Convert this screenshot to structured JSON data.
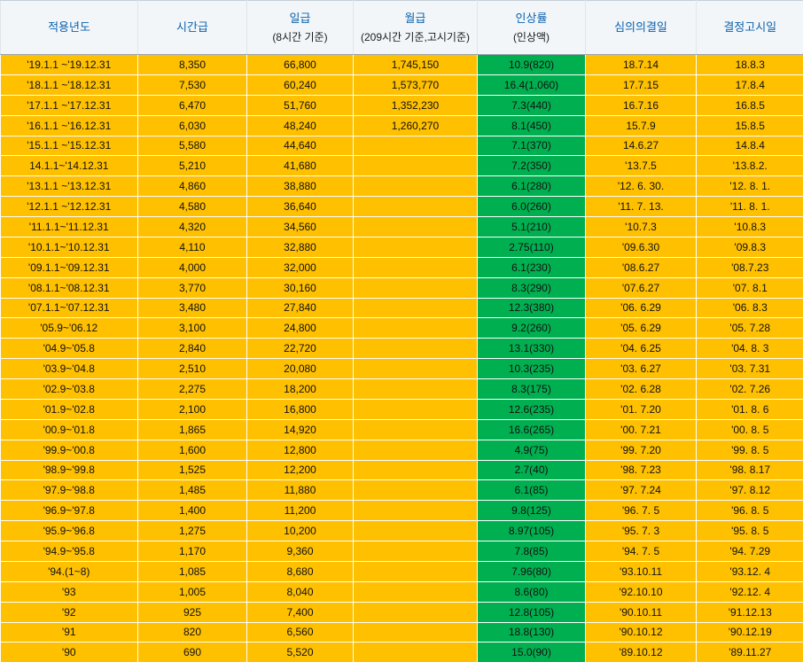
{
  "colors": {
    "header_bg": "#f2f6f9",
    "header_text": "#0b62ae",
    "header_subtext": "#1a1a1a",
    "row_bg": "#ffc000",
    "rate_bg": "#00b050",
    "cell_text": "#111111",
    "grid": "#ffffff"
  },
  "chart_data": {
    "type": "table",
    "columns": [
      {
        "label": "적용년도",
        "sublabel": ""
      },
      {
        "label": "시간급",
        "sublabel": ""
      },
      {
        "label": "일급",
        "sublabel": "(8시간 기준)"
      },
      {
        "label": "월급",
        "sublabel": "(209시간 기준,고시기준)"
      },
      {
        "label": "인상률",
        "sublabel": "(인상액)"
      },
      {
        "label": "심의의결일",
        "sublabel": ""
      },
      {
        "label": "결정고시일",
        "sublabel": ""
      }
    ],
    "rows": [
      [
        "'19.1.1 ~'19.12.31",
        "8,350",
        "66,800",
        "1,745,150",
        "10.9(820)",
        "18.7.14",
        "18.8.3"
      ],
      [
        "'18.1.1 ~'18.12.31",
        "7,530",
        "60,240",
        "1,573,770",
        "16.4(1,060)",
        "17.7.15",
        "17.8.4"
      ],
      [
        "'17.1.1 ~'17.12.31",
        "6,470",
        "51,760",
        "1,352,230",
        "7.3(440)",
        "16.7.16",
        "16.8.5"
      ],
      [
        "'16.1.1 ~'16.12.31",
        "6,030",
        "48,240",
        "1,260,270",
        "8.1(450)",
        "15.7.9",
        "15.8.5"
      ],
      [
        "'15.1.1 ~'15.12.31",
        "5,580",
        "44,640",
        "",
        "7.1(370)",
        "14.6.27",
        "14.8.4"
      ],
      [
        "14.1.1~'14.12.31",
        "5,210",
        "41,680",
        "",
        "7.2(350)",
        "'13.7.5",
        "'13.8.2."
      ],
      [
        "'13.1.1 ~'13.12.31",
        "4,860",
        "38,880",
        "",
        "6.1(280)",
        "'12. 6. 30.",
        "'12. 8. 1."
      ],
      [
        "'12.1.1 ~'12.12.31",
        "4,580",
        "36,640",
        "",
        "6.0(260)",
        "'11. 7. 13.",
        "'11. 8. 1."
      ],
      [
        "'11.1.1~'11.12.31",
        "4,320",
        "34,560",
        "",
        "5.1(210)",
        "'10.7.3",
        "'10.8.3"
      ],
      [
        "'10.1.1~'10.12.31",
        "4,110",
        "32,880",
        "",
        "2.75(110)",
        "'09.6.30",
        "'09.8.3"
      ],
      [
        "'09.1.1~'09.12.31",
        "4,000",
        "32,000",
        "",
        "6.1(230)",
        "'08.6.27",
        "'08.7.23"
      ],
      [
        "'08.1.1~'08.12.31",
        "3,770",
        "30,160",
        "",
        "8.3(290)",
        "'07.6.27",
        "'07. 8.1"
      ],
      [
        "'07.1.1~'07.12.31",
        "3,480",
        "27,840",
        "",
        "12.3(380)",
        "'06. 6.29",
        "'06. 8.3"
      ],
      [
        "'05.9~'06.12",
        "3,100",
        "24,800",
        "",
        "9.2(260)",
        "'05. 6.29",
        "'05. 7.28"
      ],
      [
        "'04.9~'05.8",
        "2,840",
        "22,720",
        "",
        "13.1(330)",
        "'04. 6.25",
        "'04. 8. 3"
      ],
      [
        "'03.9~'04.8",
        "2,510",
        "20,080",
        "",
        "10.3(235)",
        "'03. 6.27",
        "'03. 7.31"
      ],
      [
        "'02.9~'03.8",
        "2,275",
        "18,200",
        "",
        "8.3(175)",
        "'02. 6.28",
        "'02. 7.26"
      ],
      [
        "'01.9~'02.8",
        "2,100",
        "16,800",
        "",
        "12.6(235)",
        "'01. 7.20",
        "'01. 8. 6"
      ],
      [
        "'00.9~'01.8",
        "1,865",
        "14,920",
        "",
        "16.6(265)",
        "'00. 7.21",
        "'00. 8. 5"
      ],
      [
        "'99.9~'00.8",
        "1,600",
        "12,800",
        "",
        "4.9(75)",
        "'99. 7.20",
        "'99. 8. 5"
      ],
      [
        "'98.9~'99.8",
        "1,525",
        "12,200",
        "",
        "2.7(40)",
        "'98. 7.23",
        "'98. 8.17"
      ],
      [
        "'97.9~'98.8",
        "1,485",
        "11,880",
        "",
        "6.1(85)",
        "'97. 7.24",
        "'97. 8.12"
      ],
      [
        "'96.9~'97.8",
        "1,400",
        "11,200",
        "",
        "9.8(125)",
        "'96. 7. 5",
        "'96. 8. 5"
      ],
      [
        "'95.9~'96.8",
        "1,275",
        "10,200",
        "",
        "8.97(105)",
        "'95. 7. 3",
        "'95. 8. 5"
      ],
      [
        "'94.9~'95.8",
        "1,170",
        "9,360",
        "",
        "7.8(85)",
        "'94. 7. 5",
        "'94. 7.29"
      ],
      [
        "'94.(1~8)",
        "1,085",
        "8,680",
        "",
        "7.96(80)",
        "'93.10.11",
        "'93.12. 4"
      ],
      [
        "'93",
        "1,005",
        "8,040",
        "",
        "8.6(80)",
        "'92.10.10",
        "'92.12. 4"
      ],
      [
        "'92",
        "925",
        "7,400",
        "",
        "12.8(105)",
        "'90.10.11",
        "'91.12.13"
      ],
      [
        "'91",
        "820",
        "6,560",
        "",
        "18.8(130)",
        "'90.10.12",
        "'90.12.19"
      ],
      [
        "'90",
        "690",
        "5,520",
        "",
        "15.0(90)",
        "'89.10.12",
        "'89.11.27"
      ]
    ]
  }
}
